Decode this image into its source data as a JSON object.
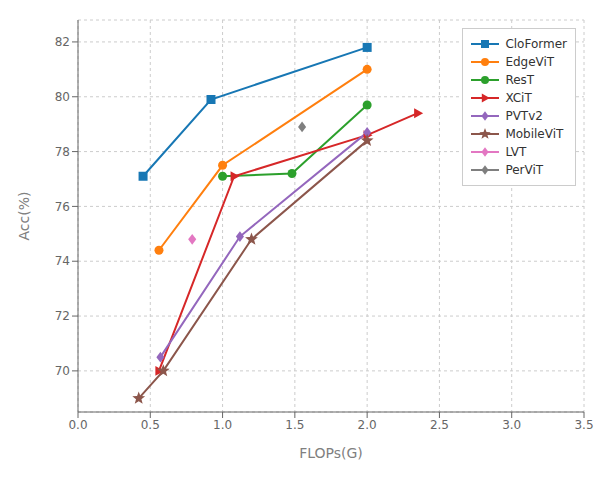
{
  "chart_data": {
    "type": "line",
    "xlabel": "FLOPs(G)",
    "ylabel": "Acc(%)",
    "xlim": [
      0.0,
      3.5
    ],
    "ylim": [
      68.5,
      82.8
    ],
    "xticks": [
      {
        "value": 0,
        "label": "0.0"
      },
      0.5,
      {
        "value": 1,
        "label": "1.0"
      },
      1.5,
      {
        "value": 2,
        "label": "2.0"
      },
      2.5,
      {
        "value": 3,
        "label": "3.0"
      },
      3.5
    ],
    "yticks": [
      70,
      72,
      74,
      76,
      78,
      80,
      82
    ],
    "grid": true,
    "legend": "upper right",
    "series": [
      {
        "name": "CloFormer",
        "color": "#1777b4",
        "marker": "square",
        "x": [
          0.45,
          0.92,
          2.0
        ],
        "values": [
          77.1,
          79.9,
          81.8
        ]
      },
      {
        "name": "EdgeViT",
        "color": "#ff7f0e",
        "marker": "circle",
        "x": [
          0.56,
          1.0,
          2.0
        ],
        "values": [
          74.4,
          77.5,
          81.0
        ]
      },
      {
        "name": "ResT",
        "color": "#2ca02c",
        "marker": "circle",
        "x": [
          1.0,
          1.48,
          2.0
        ],
        "values": [
          77.1,
          77.2,
          79.7
        ]
      },
      {
        "name": "XCiT",
        "color": "#d62728",
        "marker": "triangle-right",
        "x": [
          0.56,
          1.08,
          2.0,
          2.35
        ],
        "values": [
          70.0,
          77.1,
          78.6,
          79.4
        ]
      },
      {
        "name": "PVTv2",
        "color": "#9467bd",
        "marker": "diamond",
        "x": [
          0.57,
          1.12,
          2.0
        ],
        "values": [
          70.5,
          74.9,
          78.7
        ]
      },
      {
        "name": "MobileViT",
        "color": "#8c564b",
        "marker": "star",
        "x": [
          0.42,
          0.59,
          1.2,
          2.0
        ],
        "values": [
          69.0,
          70.0,
          74.8,
          78.4
        ]
      },
      {
        "name": "LVT",
        "color": "#e377c2",
        "marker": "diamond",
        "x": [
          0.79
        ],
        "values": [
          74.8
        ]
      },
      {
        "name": "PerViT",
        "color": "#7f7f7f",
        "marker": "diamond",
        "x": [
          1.55
        ],
        "values": [
          78.9
        ]
      }
    ]
  }
}
